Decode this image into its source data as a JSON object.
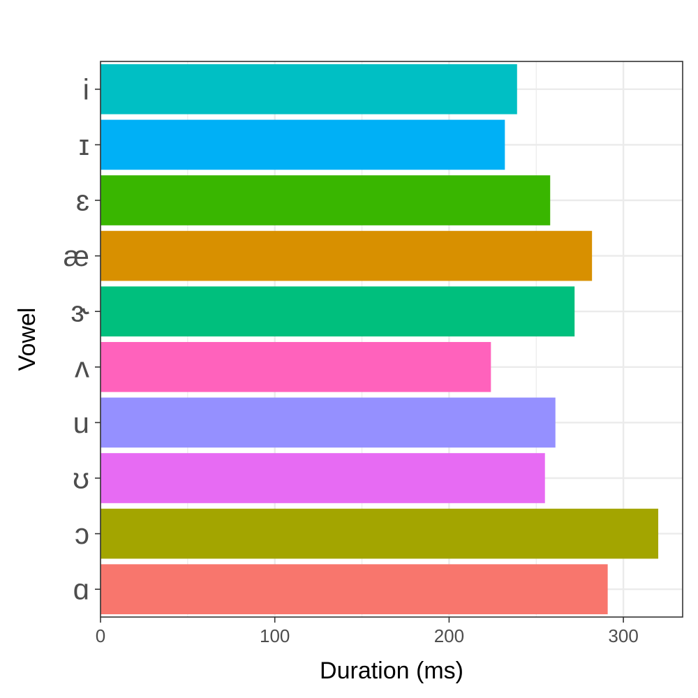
{
  "chart_data": {
    "type": "bar",
    "orientation": "horizontal",
    "title": "",
    "xlabel": "Duration (ms)",
    "ylabel": "Vowel",
    "xlim": [
      0,
      334
    ],
    "x_ticks": [
      0,
      100,
      200,
      300
    ],
    "x_minor_ticks": [
      50,
      150,
      250
    ],
    "grid": true,
    "legend": "none",
    "categories": [
      "i",
      "ɪ",
      "ɛ",
      "æ",
      "ɝ",
      "ʌ",
      "u",
      "ʊ",
      "ɔ",
      "ɑ"
    ],
    "values": [
      239,
      232,
      258,
      282,
      272,
      224,
      261,
      255,
      320,
      291
    ],
    "colors": [
      "#00BFC4",
      "#00B0F6",
      "#39B600",
      "#D89000",
      "#00BF7D",
      "#FF62BC",
      "#9590FF",
      "#E76BF3",
      "#A3A500",
      "#F8766D"
    ]
  }
}
